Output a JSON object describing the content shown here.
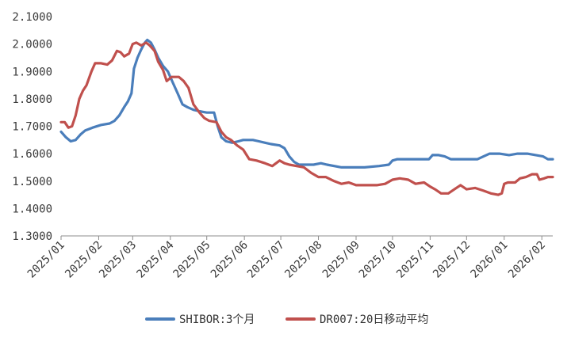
{
  "chart_data": {
    "type": "line",
    "title": "",
    "xlabel": "",
    "ylabel": "",
    "ylim": [
      1.3,
      2.1
    ],
    "yticks": [
      "1.3000",
      "1.4000",
      "1.5000",
      "1.6000",
      "1.7000",
      "1.8000",
      "1.9000",
      "2.0000",
      "2.1000"
    ],
    "xlim": [
      "2025-01-01",
      "2026-02-10"
    ],
    "xticks": [
      "2025/01",
      "2025/02",
      "2025/03",
      "2025/04",
      "2025/05",
      "2025/06",
      "2025/07",
      "2025/08",
      "2025/09",
      "2025/10",
      "2025/11",
      "2025/12",
      "2026/01",
      "2026/02"
    ],
    "grid": false,
    "legend_position": "bottom",
    "series": [
      {
        "name": "SHIBOR:3个月",
        "color": "#4a7ebb",
        "points": [
          [
            "2025-01-01",
            1.68
          ],
          [
            "2025-01-05",
            1.66
          ],
          [
            "2025-01-09",
            1.645
          ],
          [
            "2025-01-13",
            1.65
          ],
          [
            "2025-01-17",
            1.67
          ],
          [
            "2025-01-21",
            1.685
          ],
          [
            "2025-01-27",
            1.695
          ],
          [
            "2025-02-03",
            1.705
          ],
          [
            "2025-02-10",
            1.71
          ],
          [
            "2025-02-14",
            1.72
          ],
          [
            "2025-02-18",
            1.74
          ],
          [
            "2025-02-22",
            1.77
          ],
          [
            "2025-02-25",
            1.79
          ],
          [
            "2025-02-28",
            1.82
          ],
          [
            "2025-03-02",
            1.91
          ],
          [
            "2025-03-05",
            1.95
          ],
          [
            "2025-03-08",
            1.98
          ],
          [
            "2025-03-11",
            2.005
          ],
          [
            "2025-03-13",
            2.015
          ],
          [
            "2025-03-16",
            2.005
          ],
          [
            "2025-03-19",
            1.98
          ],
          [
            "2025-03-22",
            1.95
          ],
          [
            "2025-03-26",
            1.92
          ],
          [
            "2025-03-30",
            1.9
          ],
          [
            "2025-04-03",
            1.86
          ],
          [
            "2025-04-07",
            1.82
          ],
          [
            "2025-04-11",
            1.78
          ],
          [
            "2025-04-15",
            1.77
          ],
          [
            "2025-04-20",
            1.76
          ],
          [
            "2025-04-25",
            1.755
          ],
          [
            "2025-05-01",
            1.75
          ],
          [
            "2025-05-07",
            1.75
          ],
          [
            "2025-05-10",
            1.7
          ],
          [
            "2025-05-13",
            1.66
          ],
          [
            "2025-05-17",
            1.645
          ],
          [
            "2025-05-22",
            1.64
          ],
          [
            "2025-05-27",
            1.645
          ],
          [
            "2025-05-31",
            1.65
          ],
          [
            "2025-06-08",
            1.65
          ],
          [
            "2025-06-13",
            1.645
          ],
          [
            "2025-06-18",
            1.64
          ],
          [
            "2025-06-23",
            1.635
          ],
          [
            "2025-06-30",
            1.63
          ],
          [
            "2025-07-04",
            1.62
          ],
          [
            "2025-07-08",
            1.59
          ],
          [
            "2025-07-12",
            1.57
          ],
          [
            "2025-07-16",
            1.56
          ],
          [
            "2025-07-22",
            1.56
          ],
          [
            "2025-07-28",
            1.56
          ],
          [
            "2025-08-03",
            1.565
          ],
          [
            "2025-08-08",
            1.56
          ],
          [
            "2025-08-14",
            1.555
          ],
          [
            "2025-08-20",
            1.55
          ],
          [
            "2025-08-28",
            1.55
          ],
          [
            "2025-09-08",
            1.55
          ],
          [
            "2025-09-20",
            1.555
          ],
          [
            "2025-09-28",
            1.56
          ],
          [
            "2025-10-01",
            1.575
          ],
          [
            "2025-10-05",
            1.58
          ],
          [
            "2025-10-20",
            1.58
          ],
          [
            "2025-10-31",
            1.58
          ],
          [
            "2025-11-03",
            1.595
          ],
          [
            "2025-11-08",
            1.595
          ],
          [
            "2025-11-13",
            1.59
          ],
          [
            "2025-11-18",
            1.58
          ],
          [
            "2025-11-30",
            1.58
          ],
          [
            "2025-12-10",
            1.58
          ],
          [
            "2025-12-15",
            1.59
          ],
          [
            "2025-12-20",
            1.6
          ],
          [
            "2025-12-28",
            1.6
          ],
          [
            "2026-01-05",
            1.595
          ],
          [
            "2026-01-12",
            1.6
          ],
          [
            "2026-01-20",
            1.6
          ],
          [
            "2026-01-27",
            1.595
          ],
          [
            "2026-02-02",
            1.59
          ],
          [
            "2026-02-06",
            1.58
          ],
          [
            "2026-02-10",
            1.58
          ]
        ]
      },
      {
        "name": "DR007:20日移动平均",
        "color": "#c0504d",
        "points": [
          [
            "2025-01-01",
            1.715
          ],
          [
            "2025-01-04",
            1.715
          ],
          [
            "2025-01-07",
            1.695
          ],
          [
            "2025-01-10",
            1.7
          ],
          [
            "2025-01-13",
            1.74
          ],
          [
            "2025-01-16",
            1.8
          ],
          [
            "2025-01-19",
            1.83
          ],
          [
            "2025-01-22",
            1.85
          ],
          [
            "2025-01-26",
            1.9
          ],
          [
            "2025-01-29",
            1.93
          ],
          [
            "2025-02-03",
            1.93
          ],
          [
            "2025-02-08",
            1.925
          ],
          [
            "2025-02-12",
            1.94
          ],
          [
            "2025-02-16",
            1.975
          ],
          [
            "2025-02-19",
            1.97
          ],
          [
            "2025-02-22",
            1.955
          ],
          [
            "2025-02-26",
            1.965
          ],
          [
            "2025-03-01",
            2.0
          ],
          [
            "2025-03-04",
            2.005
          ],
          [
            "2025-03-08",
            1.995
          ],
          [
            "2025-03-12",
            2.005
          ],
          [
            "2025-03-15",
            1.995
          ],
          [
            "2025-03-19",
            1.975
          ],
          [
            "2025-03-22",
            1.935
          ],
          [
            "2025-03-26",
            1.905
          ],
          [
            "2025-03-29",
            1.865
          ],
          [
            "2025-04-02",
            1.88
          ],
          [
            "2025-04-08",
            1.88
          ],
          [
            "2025-04-12",
            1.865
          ],
          [
            "2025-04-16",
            1.84
          ],
          [
            "2025-04-20",
            1.78
          ],
          [
            "2025-04-25",
            1.75
          ],
          [
            "2025-04-29",
            1.73
          ],
          [
            "2025-05-03",
            1.72
          ],
          [
            "2025-05-09",
            1.715
          ],
          [
            "2025-05-13",
            1.68
          ],
          [
            "2025-05-17",
            1.66
          ],
          [
            "2025-05-21",
            1.65
          ],
          [
            "2025-05-26",
            1.63
          ],
          [
            "2025-05-31",
            1.615
          ],
          [
            "2025-06-05",
            1.58
          ],
          [
            "2025-06-11",
            1.575
          ],
          [
            "2025-06-18",
            1.565
          ],
          [
            "2025-06-24",
            1.555
          ],
          [
            "2025-06-30",
            1.575
          ],
          [
            "2025-07-04",
            1.565
          ],
          [
            "2025-07-08",
            1.56
          ],
          [
            "2025-07-14",
            1.555
          ],
          [
            "2025-07-20",
            1.55
          ],
          [
            "2025-07-26",
            1.53
          ],
          [
            "2025-08-01",
            1.515
          ],
          [
            "2025-08-07",
            1.515
          ],
          [
            "2025-08-14",
            1.5
          ],
          [
            "2025-08-20",
            1.49
          ],
          [
            "2025-08-26",
            1.495
          ],
          [
            "2025-09-01",
            1.485
          ],
          [
            "2025-09-10",
            1.485
          ],
          [
            "2025-09-18",
            1.485
          ],
          [
            "2025-09-25",
            1.49
          ],
          [
            "2025-10-01",
            1.505
          ],
          [
            "2025-10-07",
            1.51
          ],
          [
            "2025-10-14",
            1.505
          ],
          [
            "2025-10-20",
            1.49
          ],
          [
            "2025-10-27",
            1.495
          ],
          [
            "2025-11-01",
            1.48
          ],
          [
            "2025-11-05",
            1.47
          ],
          [
            "2025-11-10",
            1.455
          ],
          [
            "2025-11-16",
            1.455
          ],
          [
            "2025-11-21",
            1.47
          ],
          [
            "2025-11-26",
            1.485
          ],
          [
            "2025-12-01",
            1.47
          ],
          [
            "2025-12-08",
            1.475
          ],
          [
            "2025-12-15",
            1.465
          ],
          [
            "2025-12-21",
            1.455
          ],
          [
            "2025-12-27",
            1.45
          ],
          [
            "2025-12-30",
            1.455
          ],
          [
            "2026-01-01",
            1.49
          ],
          [
            "2026-01-04",
            1.495
          ],
          [
            "2026-01-10",
            1.495
          ],
          [
            "2026-01-14",
            1.51
          ],
          [
            "2026-01-19",
            1.515
          ],
          [
            "2026-01-24",
            1.525
          ],
          [
            "2026-01-28",
            1.525
          ],
          [
            "2026-01-30",
            1.505
          ],
          [
            "2026-02-03",
            1.51
          ],
          [
            "2026-02-06",
            1.515
          ],
          [
            "2026-02-10",
            1.515
          ]
        ]
      }
    ]
  }
}
